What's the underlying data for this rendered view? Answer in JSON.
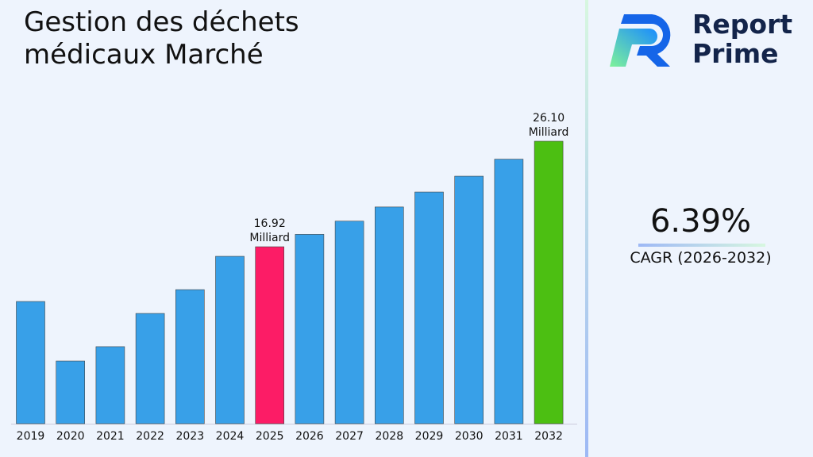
{
  "title": "Gestion des déchets médicaux Marché",
  "brand": {
    "line1": "Report",
    "line2": "Prime"
  },
  "cagr": {
    "value": "6.39%",
    "label": "CAGR (2026-2032)"
  },
  "chart_data": {
    "type": "bar",
    "categories": [
      "2019",
      "2020",
      "2021",
      "2022",
      "2023",
      "2024",
      "2025",
      "2026",
      "2027",
      "2028",
      "2029",
      "2030",
      "2031",
      "2032"
    ],
    "values": [
      12.16,
      6.98,
      8.23,
      11.12,
      13.19,
      16.09,
      16.92,
      18.0,
      19.15,
      20.38,
      21.68,
      23.06,
      24.54,
      26.1
    ],
    "colors": {
      "default": "#38a0e8",
      "highlight_2025": "#fc1c66",
      "highlight_2032": "#4cbf12"
    },
    "data_labels": [
      {
        "category": "2025",
        "value": "16.92",
        "unit": "Milliard"
      },
      {
        "category": "2032",
        "value": "26.10",
        "unit": "Milliard"
      }
    ],
    "ylim": [
      1.53,
      26.1
    ],
    "grid": false
  }
}
